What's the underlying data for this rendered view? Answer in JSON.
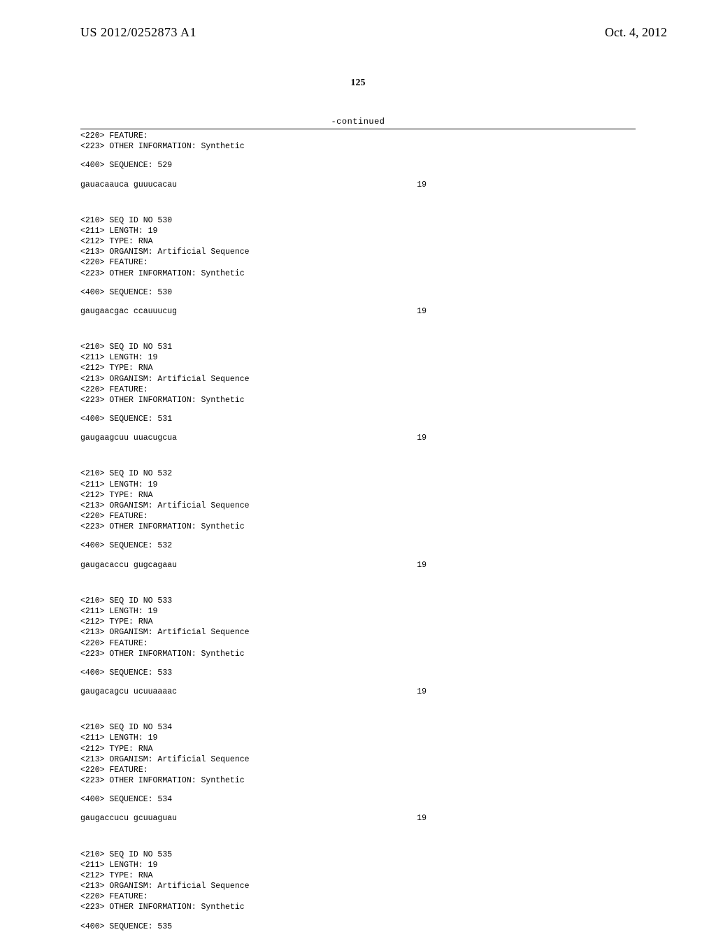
{
  "header": {
    "publication_number": "US 2012/0252873 A1",
    "publication_date": "Oct. 4, 2012"
  },
  "page_number": "125",
  "continued_label": "-continued",
  "blocks": [
    {
      "features": [
        "<220> FEATURE:",
        "<223> OTHER INFORMATION: Synthetic"
      ],
      "seq_label": "<400> SEQUENCE: 529",
      "seq_text": "gauacaauca guuucacau",
      "seq_len": "19"
    },
    {
      "header": [
        "<210> SEQ ID NO 530",
        "<211> LENGTH: 19",
        "<212> TYPE: RNA",
        "<213> ORGANISM: Artificial Sequence",
        "<220> FEATURE:",
        "<223> OTHER INFORMATION: Synthetic"
      ],
      "seq_label": "<400> SEQUENCE: 530",
      "seq_text": "gaugaacgac ccauuucug",
      "seq_len": "19"
    },
    {
      "header": [
        "<210> SEQ ID NO 531",
        "<211> LENGTH: 19",
        "<212> TYPE: RNA",
        "<213> ORGANISM: Artificial Sequence",
        "<220> FEATURE:",
        "<223> OTHER INFORMATION: Synthetic"
      ],
      "seq_label": "<400> SEQUENCE: 531",
      "seq_text": "gaugaagcuu uuacugcua",
      "seq_len": "19"
    },
    {
      "header": [
        "<210> SEQ ID NO 532",
        "<211> LENGTH: 19",
        "<212> TYPE: RNA",
        "<213> ORGANISM: Artificial Sequence",
        "<220> FEATURE:",
        "<223> OTHER INFORMATION: Synthetic"
      ],
      "seq_label": "<400> SEQUENCE: 532",
      "seq_text": "gaugacaccu gugcagaau",
      "seq_len": "19"
    },
    {
      "header": [
        "<210> SEQ ID NO 533",
        "<211> LENGTH: 19",
        "<212> TYPE: RNA",
        "<213> ORGANISM: Artificial Sequence",
        "<220> FEATURE:",
        "<223> OTHER INFORMATION: Synthetic"
      ],
      "seq_label": "<400> SEQUENCE: 533",
      "seq_text": "gaugacagcu ucuuaaaac",
      "seq_len": "19"
    },
    {
      "header": [
        "<210> SEQ ID NO 534",
        "<211> LENGTH: 19",
        "<212> TYPE: RNA",
        "<213> ORGANISM: Artificial Sequence",
        "<220> FEATURE:",
        "<223> OTHER INFORMATION: Synthetic"
      ],
      "seq_label": "<400> SEQUENCE: 534",
      "seq_text": "gaugaccucu gcuuaguau",
      "seq_len": "19"
    },
    {
      "header": [
        "<210> SEQ ID NO 535",
        "<211> LENGTH: 19",
        "<212> TYPE: RNA",
        "<213> ORGANISM: Artificial Sequence",
        "<220> FEATURE:",
        "<223> OTHER INFORMATION: Synthetic"
      ],
      "seq_label": "<400> SEQUENCE: 535"
    }
  ]
}
